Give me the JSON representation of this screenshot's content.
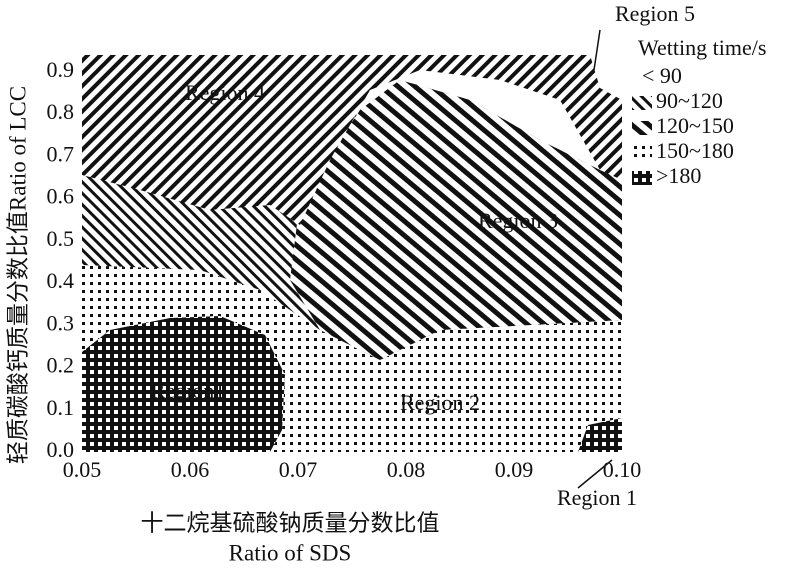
{
  "chart_data": {
    "type": "contour",
    "xlabel": [
      "十二烷基硫酸钠质量分数比值",
      "Ratio of SDS"
    ],
    "ylabel": "轻质碳酸钙质量分数比值Ratio of LCC",
    "xlim": [
      0.05,
      0.1
    ],
    "ylim": [
      0,
      0.94
    ],
    "xticks": [
      0.05,
      0.06,
      0.07,
      0.08,
      0.09,
      {
        "value": 0.1,
        "label": "0.10"
      }
    ],
    "yticks": [
      {
        "value": 0,
        "label": "0.0"
      },
      0.1,
      0.2,
      0.3,
      0.4,
      0.5,
      0.6,
      0.7,
      0.8,
      0.9
    ],
    "legend": {
      "title": "Wetting time/s",
      "entries": [
        "< 90",
        "90~120",
        "120~150",
        "150~180",
        ">180"
      ]
    },
    "annotations": [
      "Region 5",
      "Region 4",
      "Region 3",
      "Region 2",
      "Region1",
      "Region 1"
    ],
    "grid": false
  }
}
